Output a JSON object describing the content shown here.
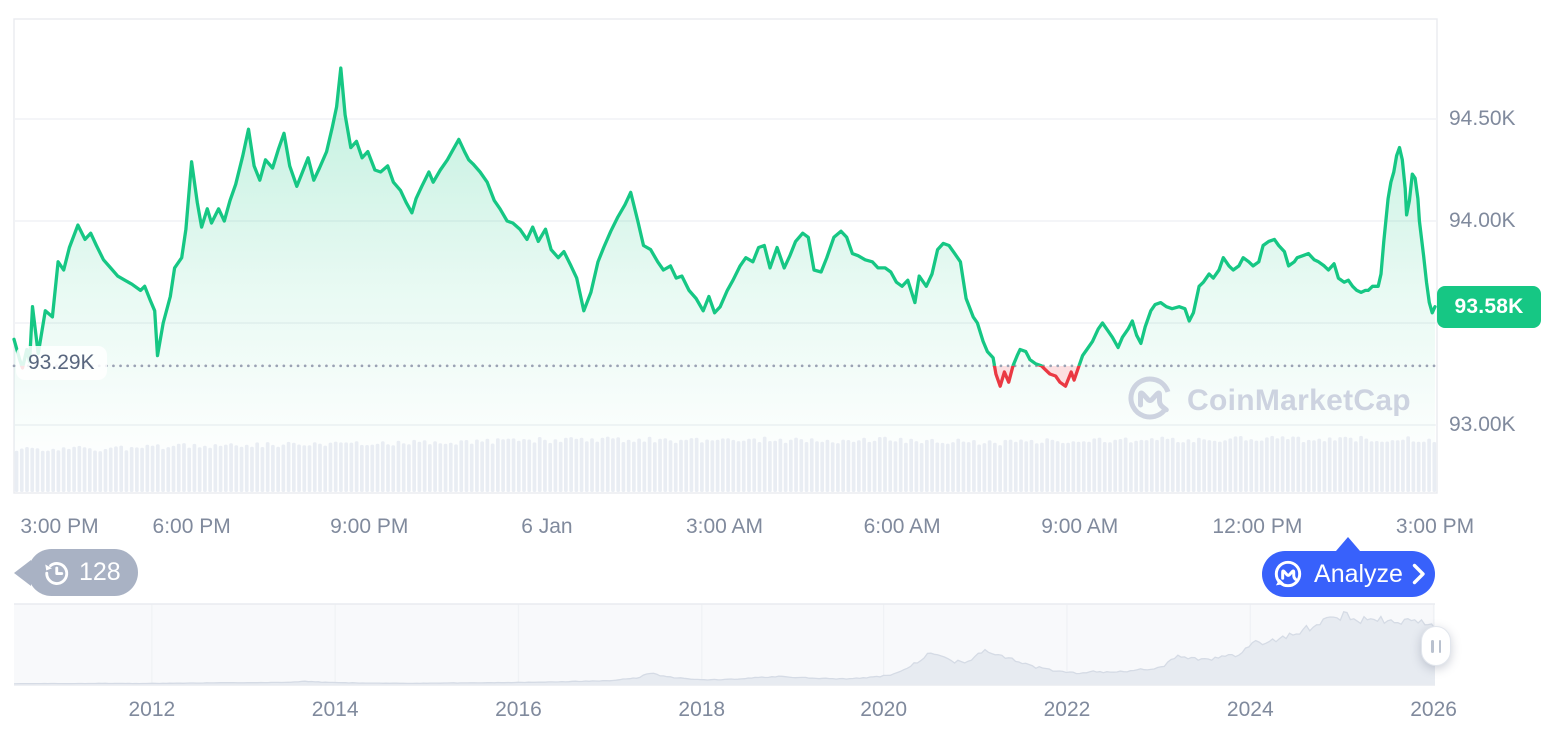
{
  "app": {
    "watermark": "CoinMarketCap"
  },
  "toolbar": {
    "history_count": "128",
    "analyze_label": "Analyze"
  },
  "colors": {
    "up": "#16C784",
    "down": "#EA3943",
    "down_fill": "rgba(234,57,67,0.16)",
    "accent_blue": "#3861FB",
    "axis_text": "#808A9D",
    "baseline_text": "#58667E",
    "grid": "#F0F2F5",
    "border": "#E9EBF0",
    "dotted": "#9AA2B4",
    "volume": "#E9EDF3",
    "watermark": "#CDD3E0",
    "nav_fill": "#E7EBF1",
    "nav_line": "#D5DBE5",
    "nav_tint": "rgba(242,244,248,0.55)",
    "badge_gray": "#A9B2C4"
  },
  "chart_data": {
    "type": "line",
    "title": "",
    "last_price": 93.58,
    "last_price_label": "93.58K",
    "baseline_value": 93.29,
    "baseline_label": "93.29K",
    "y_axis": {
      "min": 92.77,
      "max": 94.99,
      "ticks": [
        {
          "label": "94.50K",
          "value": 94.5
        },
        {
          "label": "94.00K",
          "value": 94.0
        },
        {
          "label": "93.00K",
          "value": 93.0
        }
      ],
      "gridline_values": [
        94.5,
        94.0,
        93.5,
        93.0
      ]
    },
    "x_axis": {
      "ticks": [
        {
          "label": "3:00 PM",
          "pos": 0.032
        },
        {
          "label": "6:00 PM",
          "pos": 0.125
        },
        {
          "label": "9:00 PM",
          "pos": 0.25
        },
        {
          "label": "6 Jan",
          "pos": 0.375
        },
        {
          "label": "3:00 AM",
          "pos": 0.5
        },
        {
          "label": "6:00 AM",
          "pos": 0.625
        },
        {
          "label": "9:00 AM",
          "pos": 0.75
        },
        {
          "label": "12:00 PM",
          "pos": 0.875
        },
        {
          "label": "3:00 PM",
          "pos": 1.0
        }
      ]
    },
    "series": [
      [
        0.0,
        93.42
      ],
      [
        0.004,
        93.32
      ],
      [
        0.006,
        93.28
      ],
      [
        0.009,
        93.37
      ],
      [
        0.011,
        93.31
      ],
      [
        0.013,
        93.58
      ],
      [
        0.017,
        93.35
      ],
      [
        0.022,
        93.56
      ],
      [
        0.027,
        93.53
      ],
      [
        0.031,
        93.8
      ],
      [
        0.035,
        93.76
      ],
      [
        0.039,
        93.87
      ],
      [
        0.045,
        93.98
      ],
      [
        0.05,
        93.91
      ],
      [
        0.054,
        93.94
      ],
      [
        0.058,
        93.88
      ],
      [
        0.063,
        93.81
      ],
      [
        0.068,
        93.77
      ],
      [
        0.073,
        93.73
      ],
      [
        0.078,
        93.71
      ],
      [
        0.083,
        93.69
      ],
      [
        0.089,
        93.66
      ],
      [
        0.092,
        93.68
      ],
      [
        0.096,
        93.61
      ],
      [
        0.099,
        93.56
      ],
      [
        0.101,
        93.34
      ],
      [
        0.105,
        93.5
      ],
      [
        0.11,
        93.63
      ],
      [
        0.113,
        93.77
      ],
      [
        0.118,
        93.82
      ],
      [
        0.121,
        93.96
      ],
      [
        0.125,
        94.29
      ],
      [
        0.129,
        94.09
      ],
      [
        0.132,
        93.97
      ],
      [
        0.136,
        94.06
      ],
      [
        0.139,
        93.99
      ],
      [
        0.144,
        94.06
      ],
      [
        0.148,
        94.0
      ],
      [
        0.152,
        94.1
      ],
      [
        0.156,
        94.18
      ],
      [
        0.161,
        94.32
      ],
      [
        0.165,
        94.45
      ],
      [
        0.169,
        94.27
      ],
      [
        0.173,
        94.2
      ],
      [
        0.177,
        94.3
      ],
      [
        0.182,
        94.26
      ],
      [
        0.186,
        94.35
      ],
      [
        0.19,
        94.43
      ],
      [
        0.194,
        94.27
      ],
      [
        0.199,
        94.17
      ],
      [
        0.203,
        94.24
      ],
      [
        0.207,
        94.31
      ],
      [
        0.211,
        94.2
      ],
      [
        0.215,
        94.26
      ],
      [
        0.22,
        94.34
      ],
      [
        0.224,
        94.46
      ],
      [
        0.227,
        94.56
      ],
      [
        0.23,
        94.75
      ],
      [
        0.233,
        94.52
      ],
      [
        0.237,
        94.36
      ],
      [
        0.241,
        94.39
      ],
      [
        0.245,
        94.31
      ],
      [
        0.249,
        94.34
      ],
      [
        0.254,
        94.25
      ],
      [
        0.258,
        94.24
      ],
      [
        0.263,
        94.27
      ],
      [
        0.267,
        94.19
      ],
      [
        0.272,
        94.15
      ],
      [
        0.276,
        94.09
      ],
      [
        0.28,
        94.04
      ],
      [
        0.283,
        94.11
      ],
      [
        0.287,
        94.17
      ],
      [
        0.292,
        94.24
      ],
      [
        0.295,
        94.19
      ],
      [
        0.3,
        94.25
      ],
      [
        0.305,
        94.3
      ],
      [
        0.309,
        94.35
      ],
      [
        0.313,
        94.4
      ],
      [
        0.317,
        94.34
      ],
      [
        0.32,
        94.3
      ],
      [
        0.323,
        94.28
      ],
      [
        0.328,
        94.24
      ],
      [
        0.333,
        94.19
      ],
      [
        0.338,
        94.1
      ],
      [
        0.342,
        94.06
      ],
      [
        0.347,
        94.0
      ],
      [
        0.351,
        93.99
      ],
      [
        0.356,
        93.96
      ],
      [
        0.361,
        93.91
      ],
      [
        0.365,
        93.97
      ],
      [
        0.369,
        93.9
      ],
      [
        0.374,
        93.96
      ],
      [
        0.378,
        93.86
      ],
      [
        0.383,
        93.82
      ],
      [
        0.387,
        93.85
      ],
      [
        0.392,
        93.78
      ],
      [
        0.396,
        93.72
      ],
      [
        0.401,
        93.56
      ],
      [
        0.406,
        93.65
      ],
      [
        0.411,
        93.8
      ],
      [
        0.415,
        93.87
      ],
      [
        0.42,
        93.95
      ],
      [
        0.425,
        94.02
      ],
      [
        0.43,
        94.08
      ],
      [
        0.434,
        94.14
      ],
      [
        0.439,
        94.0
      ],
      [
        0.443,
        93.88
      ],
      [
        0.448,
        93.86
      ],
      [
        0.453,
        93.8
      ],
      [
        0.457,
        93.76
      ],
      [
        0.462,
        93.78
      ],
      [
        0.466,
        93.72
      ],
      [
        0.47,
        93.73
      ],
      [
        0.475,
        93.66
      ],
      [
        0.48,
        93.62
      ],
      [
        0.485,
        93.56
      ],
      [
        0.489,
        93.63
      ],
      [
        0.493,
        93.55
      ],
      [
        0.497,
        93.58
      ],
      [
        0.502,
        93.66
      ],
      [
        0.506,
        93.71
      ],
      [
        0.511,
        93.78
      ],
      [
        0.515,
        93.82
      ],
      [
        0.52,
        93.8
      ],
      [
        0.524,
        93.87
      ],
      [
        0.528,
        93.88
      ],
      [
        0.532,
        93.77
      ],
      [
        0.537,
        93.87
      ],
      [
        0.542,
        93.77
      ],
      [
        0.546,
        93.83
      ],
      [
        0.55,
        93.9
      ],
      [
        0.555,
        93.94
      ],
      [
        0.559,
        93.92
      ],
      [
        0.563,
        93.76
      ],
      [
        0.568,
        93.75
      ],
      [
        0.572,
        93.82
      ],
      [
        0.577,
        93.92
      ],
      [
        0.582,
        93.95
      ],
      [
        0.586,
        93.92
      ],
      [
        0.59,
        93.84
      ],
      [
        0.594,
        93.83
      ],
      [
        0.599,
        93.81
      ],
      [
        0.604,
        93.8
      ],
      [
        0.608,
        93.77
      ],
      [
        0.613,
        93.77
      ],
      [
        0.617,
        93.75
      ],
      [
        0.621,
        93.7
      ],
      [
        0.625,
        93.68
      ],
      [
        0.629,
        93.71
      ],
      [
        0.634,
        93.6
      ],
      [
        0.637,
        93.73
      ],
      [
        0.642,
        93.68
      ],
      [
        0.646,
        93.74
      ],
      [
        0.65,
        93.86
      ],
      [
        0.654,
        93.89
      ],
      [
        0.658,
        93.88
      ],
      [
        0.662,
        93.84
      ],
      [
        0.666,
        93.8
      ],
      [
        0.67,
        93.62
      ],
      [
        0.675,
        93.53
      ],
      [
        0.678,
        93.5
      ],
      [
        0.682,
        93.41
      ],
      [
        0.685,
        93.36
      ],
      [
        0.689,
        93.33
      ],
      [
        0.691,
        93.25
      ],
      [
        0.694,
        93.19
      ],
      [
        0.697,
        93.26
      ],
      [
        0.7,
        93.21
      ],
      [
        0.703,
        93.29
      ],
      [
        0.706,
        93.34
      ],
      [
        0.708,
        93.37
      ],
      [
        0.712,
        93.36
      ],
      [
        0.715,
        93.32
      ],
      [
        0.719,
        93.3
      ],
      [
        0.723,
        93.29
      ],
      [
        0.726,
        93.27
      ],
      [
        0.729,
        93.25
      ],
      [
        0.733,
        93.24
      ],
      [
        0.736,
        93.21
      ],
      [
        0.74,
        93.19
      ],
      [
        0.744,
        93.26
      ],
      [
        0.746,
        93.22
      ],
      [
        0.749,
        93.28
      ],
      [
        0.752,
        93.34
      ],
      [
        0.755,
        93.37
      ],
      [
        0.759,
        93.41
      ],
      [
        0.763,
        93.47
      ],
      [
        0.766,
        93.5
      ],
      [
        0.77,
        93.46
      ],
      [
        0.773,
        93.43
      ],
      [
        0.777,
        93.38
      ],
      [
        0.78,
        93.43
      ],
      [
        0.784,
        93.47
      ],
      [
        0.787,
        93.51
      ],
      [
        0.79,
        93.44
      ],
      [
        0.793,
        93.4
      ],
      [
        0.796,
        93.48
      ],
      [
        0.8,
        93.56
      ],
      [
        0.803,
        93.59
      ],
      [
        0.807,
        93.6
      ],
      [
        0.811,
        93.58
      ],
      [
        0.815,
        93.57
      ],
      [
        0.82,
        93.58
      ],
      [
        0.824,
        93.57
      ],
      [
        0.827,
        93.51
      ],
      [
        0.83,
        93.55
      ],
      [
        0.834,
        93.68
      ],
      [
        0.837,
        93.7
      ],
      [
        0.841,
        93.74
      ],
      [
        0.844,
        93.72
      ],
      [
        0.848,
        93.76
      ],
      [
        0.851,
        93.82
      ],
      [
        0.855,
        93.78
      ],
      [
        0.858,
        93.76
      ],
      [
        0.862,
        93.78
      ],
      [
        0.865,
        93.82
      ],
      [
        0.869,
        93.8
      ],
      [
        0.872,
        93.78
      ],
      [
        0.876,
        93.8
      ],
      [
        0.879,
        93.88
      ],
      [
        0.883,
        93.9
      ],
      [
        0.887,
        93.91
      ],
      [
        0.89,
        93.88
      ],
      [
        0.894,
        93.85
      ],
      [
        0.897,
        93.78
      ],
      [
        0.901,
        93.8
      ],
      [
        0.903,
        93.82
      ],
      [
        0.907,
        93.83
      ],
      [
        0.911,
        93.84
      ],
      [
        0.915,
        93.81
      ],
      [
        0.918,
        93.8
      ],
      [
        0.922,
        93.78
      ],
      [
        0.925,
        93.76
      ],
      [
        0.929,
        93.79
      ],
      [
        0.932,
        93.72
      ],
      [
        0.936,
        93.7
      ],
      [
        0.939,
        93.71
      ],
      [
        0.942,
        93.68
      ],
      [
        0.945,
        93.66
      ],
      [
        0.948,
        93.65
      ],
      [
        0.951,
        93.66
      ],
      [
        0.953,
        93.66
      ],
      [
        0.956,
        93.68
      ],
      [
        0.96,
        93.68
      ],
      [
        0.962,
        93.74
      ],
      [
        0.964,
        93.9
      ],
      [
        0.967,
        94.11
      ],
      [
        0.969,
        94.19
      ],
      [
        0.971,
        94.24
      ],
      [
        0.973,
        94.32
      ],
      [
        0.975,
        94.36
      ],
      [
        0.976,
        94.33
      ],
      [
        0.977,
        94.3
      ],
      [
        0.979,
        94.16
      ],
      [
        0.98,
        94.03
      ],
      [
        0.982,
        94.1
      ],
      [
        0.984,
        94.23
      ],
      [
        0.986,
        94.21
      ],
      [
        0.988,
        94.11
      ],
      [
        0.989,
        94.0
      ],
      [
        0.992,
        93.83
      ],
      [
        0.994,
        93.7
      ],
      [
        0.996,
        93.6
      ],
      [
        0.998,
        93.55
      ],
      [
        1.0,
        93.58
      ]
    ],
    "volume_profile": [
      0.8,
      0.82,
      0.79,
      0.84,
      0.86,
      0.87,
      0.89,
      0.88,
      0.9,
      0.92,
      0.93,
      0.95,
      0.97,
      0.96,
      0.98,
      0.96,
      0.97,
      0.98,
      0.96,
      0.95,
      0.97,
      0.96,
      0.94,
      0.92,
      0.95,
      0.97,
      0.96,
      0.98,
      0.97,
      0.99,
      0.98,
      1.0,
      0.99,
      0.98
    ],
    "navigator": {
      "years": [
        {
          "label": "2012",
          "pos": 0.097
        },
        {
          "label": "2014",
          "pos": 0.226
        },
        {
          "label": "2016",
          "pos": 0.355
        },
        {
          "label": "2018",
          "pos": 0.484
        },
        {
          "label": "2020",
          "pos": 0.612
        },
        {
          "label": "2022",
          "pos": 0.741
        },
        {
          "label": "2024",
          "pos": 0.87
        },
        {
          "label": "2026",
          "pos": 0.999
        }
      ],
      "profile": [
        [
          0.0,
          0.015
        ],
        [
          0.02,
          0.02
        ],
        [
          0.04,
          0.018
        ],
        [
          0.06,
          0.022
        ],
        [
          0.09,
          0.02
        ],
        [
          0.12,
          0.025
        ],
        [
          0.15,
          0.03
        ],
        [
          0.19,
          0.035
        ],
        [
          0.205,
          0.05
        ],
        [
          0.22,
          0.035
        ],
        [
          0.25,
          0.025
        ],
        [
          0.28,
          0.022
        ],
        [
          0.31,
          0.028
        ],
        [
          0.33,
          0.03
        ],
        [
          0.36,
          0.035
        ],
        [
          0.39,
          0.045
        ],
        [
          0.42,
          0.06
        ],
        [
          0.44,
          0.1
        ],
        [
          0.447,
          0.17
        ],
        [
          0.455,
          0.12
        ],
        [
          0.47,
          0.09
        ],
        [
          0.49,
          0.07
        ],
        [
          0.51,
          0.08
        ],
        [
          0.53,
          0.11
        ],
        [
          0.54,
          0.12
        ],
        [
          0.55,
          0.1
        ],
        [
          0.567,
          0.09
        ],
        [
          0.58,
          0.08
        ],
        [
          0.6,
          0.1
        ],
        [
          0.615,
          0.13
        ],
        [
          0.627,
          0.22
        ],
        [
          0.635,
          0.3
        ],
        [
          0.645,
          0.46
        ],
        [
          0.652,
          0.42
        ],
        [
          0.66,
          0.33
        ],
        [
          0.668,
          0.3
        ],
        [
          0.675,
          0.35
        ],
        [
          0.682,
          0.48
        ],
        [
          0.69,
          0.42
        ],
        [
          0.7,
          0.36
        ],
        [
          0.71,
          0.3
        ],
        [
          0.718,
          0.24
        ],
        [
          0.73,
          0.2
        ],
        [
          0.748,
          0.16
        ],
        [
          0.76,
          0.18
        ],
        [
          0.775,
          0.17
        ],
        [
          0.79,
          0.2
        ],
        [
          0.808,
          0.24
        ],
        [
          0.818,
          0.38
        ],
        [
          0.828,
          0.36
        ],
        [
          0.84,
          0.34
        ],
        [
          0.852,
          0.38
        ],
        [
          0.862,
          0.42
        ],
        [
          0.868,
          0.52
        ],
        [
          0.874,
          0.58
        ],
        [
          0.88,
          0.54
        ],
        [
          0.886,
          0.6
        ],
        [
          0.892,
          0.64
        ],
        [
          0.898,
          0.66
        ],
        [
          0.904,
          0.72
        ],
        [
          0.91,
          0.8
        ],
        [
          0.916,
          0.76
        ],
        [
          0.922,
          0.86
        ],
        [
          0.928,
          0.92
        ],
        [
          0.932,
          0.88
        ],
        [
          0.936,
          0.93
        ],
        [
          0.94,
          0.9
        ],
        [
          0.944,
          0.86
        ],
        [
          0.95,
          0.88
        ],
        [
          0.956,
          0.84
        ],
        [
          0.962,
          0.88
        ],
        [
          0.97,
          0.82
        ],
        [
          0.98,
          0.86
        ],
        [
          0.99,
          0.84
        ],
        [
          1.0,
          0.8
        ]
      ]
    }
  }
}
